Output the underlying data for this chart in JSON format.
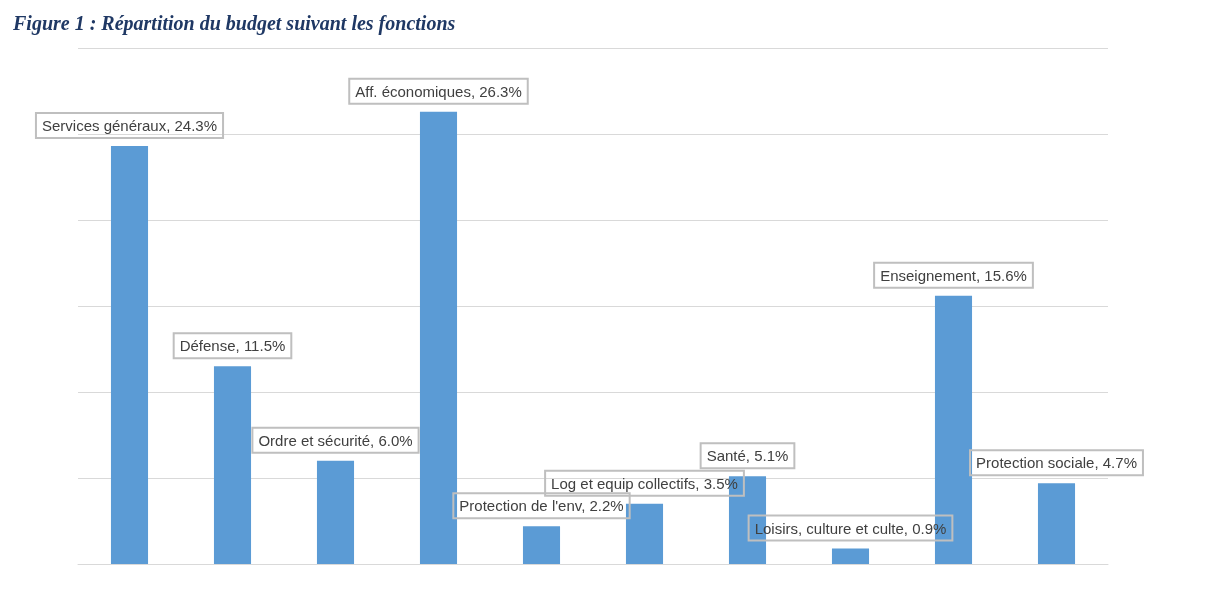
{
  "chart_data": {
    "type": "bar",
    "title": "Figure 1 : Répartition du budget suivant les fonctions",
    "categories": [
      null,
      null,
      null,
      null,
      null,
      null,
      null,
      null,
      null,
      null
    ],
    "values": [
      24.3,
      11.5,
      6.0,
      26.3,
      2.2,
      3.5,
      5.1,
      0.9,
      15.6,
      4.7
    ],
    "value_labels": [
      "Services généraux, 24.3%",
      "Défense, 11.5%",
      "Ordre et sécurité, 6.0%",
      "Aff. économiques, 26.3%",
      "Protection de l'env, 2.2%",
      "Log et equip collectifs, 3.5%",
      "Santé, 5.1%",
      "Loisirs, culture et culte, 0.9%",
      "Enseignement, 15.6%",
      "Protection sociale, 4.7%"
    ],
    "color": "#5b9bd5",
    "ylim": [
      0,
      30
    ],
    "yticks": [
      {
        "value": 0,
        "label": null
      },
      {
        "value": 5,
        "label": null
      },
      {
        "value": 10,
        "label": null
      },
      {
        "value": 15,
        "label": null
      },
      {
        "value": 20,
        "label": null
      },
      {
        "value": 25,
        "label": null
      },
      {
        "value": 30,
        "label": null
      }
    ],
    "grid": "y",
    "tick_labels": false
  }
}
